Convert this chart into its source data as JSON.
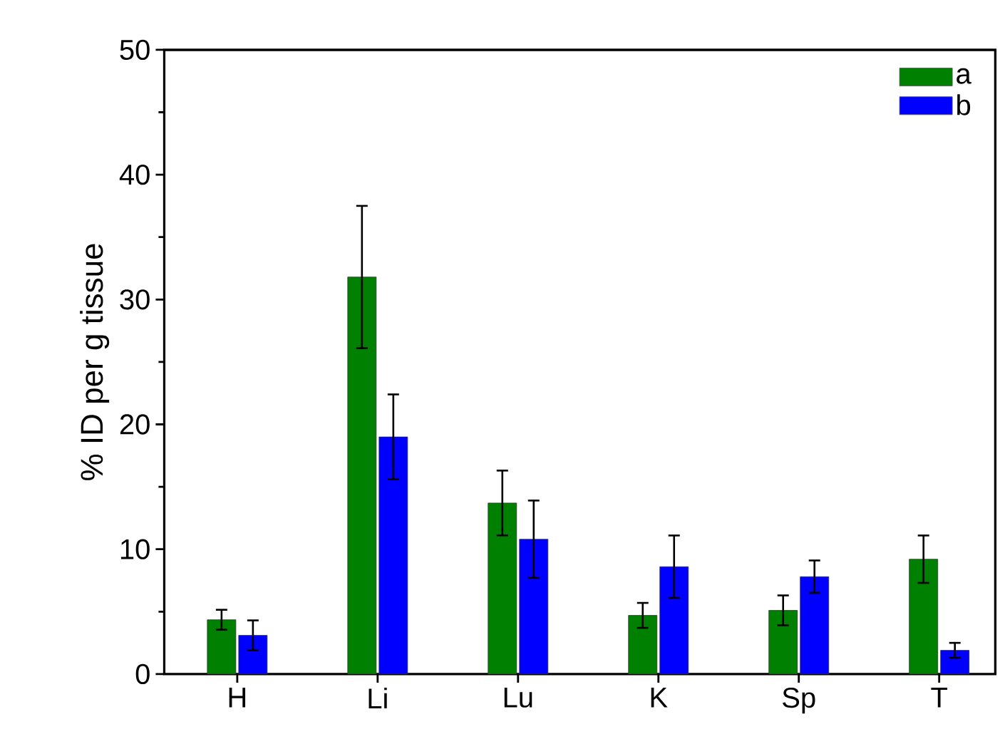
{
  "chart_data": {
    "type": "bar",
    "ylabel": "% ID per g tissue",
    "categories": [
      "H",
      "Li",
      "Lu",
      "K",
      "Sp",
      "T"
    ],
    "series": [
      {
        "name": "a",
        "color": "#008000",
        "values": [
          4.35,
          31.8,
          13.7,
          4.7,
          5.1,
          9.2
        ],
        "errors": [
          0.8,
          5.7,
          2.6,
          1.0,
          1.2,
          1.9
        ]
      },
      {
        "name": "b",
        "color": "#0000ff",
        "values": [
          3.1,
          19.0,
          10.8,
          8.6,
          7.8,
          1.9
        ],
        "errors": [
          1.2,
          3.4,
          3.1,
          2.5,
          1.3,
          0.6
        ]
      }
    ],
    "ylim": [
      0,
      50
    ],
    "yticks": [
      0,
      10,
      20,
      30,
      40,
      50
    ],
    "legend": "top right",
    "grid": false
  }
}
